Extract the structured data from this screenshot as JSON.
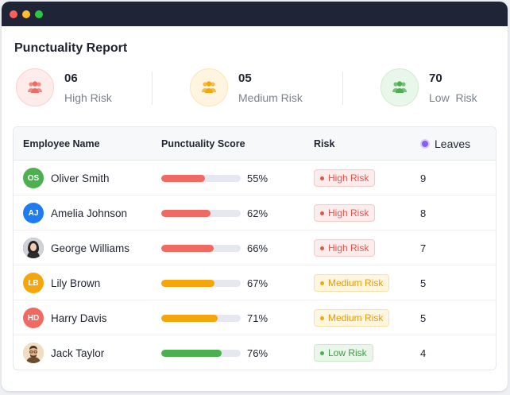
{
  "window": {
    "dots": [
      "#ff5f57",
      "#febc2e",
      "#28c840"
    ]
  },
  "report": {
    "title": "Punctuality Report"
  },
  "summary": [
    {
      "count": "06",
      "label": "High Risk",
      "icon": "users-icon",
      "bg": "#fdecea",
      "ring": "#f9d3cf",
      "color": "#ef6b62"
    },
    {
      "count": "05",
      "label": "Medium Risk",
      "icon": "users-icon",
      "bg": "#fff4df",
      "ring": "#fde5b6",
      "color": "#f5a60a"
    },
    {
      "count": "70",
      "label": "Low  Risk",
      "icon": "users-icon",
      "bg": "#e9f6ea",
      "ring": "#cfeccf",
      "color": "#4caf50"
    }
  ],
  "table": {
    "headers": {
      "name": "Employee Name",
      "score": "Punctuality Score",
      "risk": "Risk",
      "leaves": "Leaves"
    },
    "rows": [
      {
        "name": "Oliver Smith",
        "initials": "OS",
        "avatar_color": "#4caf50",
        "photo": false,
        "score": 55,
        "score_label": "55%",
        "bar_color": "#f06a63",
        "risk": "High Risk",
        "risk_level": "high",
        "leaves": "9"
      },
      {
        "name": "Amelia Johnson",
        "initials": "AJ",
        "avatar_color": "#1e7bf2",
        "photo": false,
        "score": 62,
        "score_label": "62%",
        "bar_color": "#f06a63",
        "risk": "High Risk",
        "risk_level": "high",
        "leaves": "8"
      },
      {
        "name": "George Williams",
        "initials": "",
        "avatar_color": "#3a3a3a",
        "photo": true,
        "score": 66,
        "score_label": "66%",
        "bar_color": "#f06a63",
        "risk": "High Risk",
        "risk_level": "high",
        "leaves": "7"
      },
      {
        "name": "Lily Brown",
        "initials": "LB",
        "avatar_color": "#f5a60a",
        "photo": false,
        "score": 67,
        "score_label": "67%",
        "bar_color": "#f5a60a",
        "risk": "Medium Risk",
        "risk_level": "medium",
        "leaves": "5"
      },
      {
        "name": "Harry Davis",
        "initials": "HD",
        "avatar_color": "#f06a63",
        "photo": false,
        "score": 71,
        "score_label": "71%",
        "bar_color": "#f5a60a",
        "risk": "Medium Risk",
        "risk_level": "medium",
        "leaves": "5"
      },
      {
        "name": "Jack Taylor",
        "initials": "",
        "avatar_color": "#e8c9a8",
        "photo": true,
        "score": 76,
        "score_label": "76%",
        "bar_color": "#4caf50",
        "risk": "Low Risk",
        "risk_level": "low",
        "leaves": "4"
      }
    ]
  },
  "risk_styles": {
    "high": {
      "bg": "#fdecec",
      "border": "#f7c9c6",
      "text": "#e0554c",
      "dot": "#e0554c"
    },
    "medium": {
      "bg": "#fff6e0",
      "border": "#fbe0a2",
      "text": "#e59a0a",
      "dot": "#f5a60a"
    },
    "low": {
      "bg": "#eaf6ea",
      "border": "#c8e9c9",
      "text": "#3f9a45",
      "dot": "#4caf50"
    }
  }
}
